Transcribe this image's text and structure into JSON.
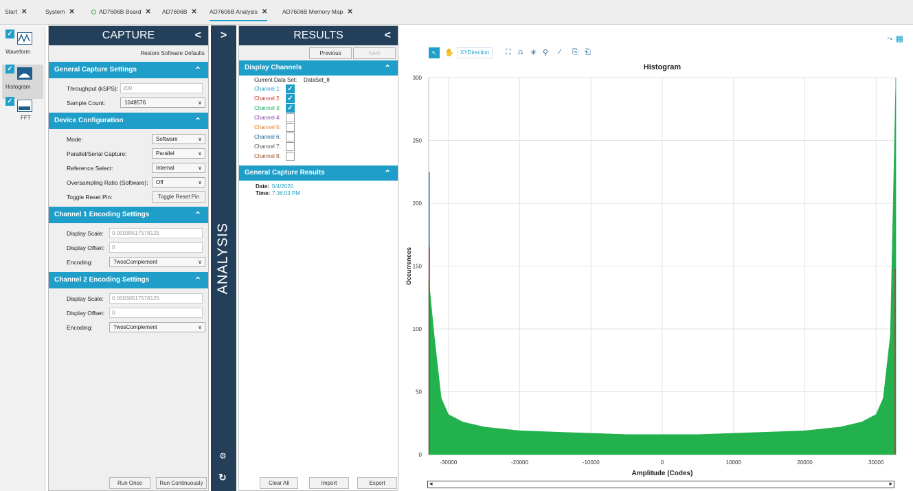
{
  "tabs": [
    {
      "label": "Start"
    },
    {
      "label": "System"
    },
    {
      "label": "AD7606B Board"
    },
    {
      "label": "AD7606B"
    },
    {
      "label": "AD7606B Analysis"
    },
    {
      "label": "AD7606B Memory Map"
    }
  ],
  "nav": [
    {
      "label": "Waveform"
    },
    {
      "label": "Histogram"
    },
    {
      "label": "FFT"
    }
  ],
  "capture": {
    "title": "CAPTURE",
    "restore": "Restore Software Defaults",
    "general": {
      "title": "General Capture Settings",
      "throughput_label": "Throughput (kSPS):",
      "throughput_value": "200",
      "sample_count_label": "Sample Count:",
      "sample_count_value": "1048576"
    },
    "device": {
      "title": "Device Configuration",
      "mode_label": "Mode:",
      "mode_value": "Software",
      "ps_label": "Parallel/Serial Capture:",
      "ps_value": "Parallel",
      "ref_label": "Reference Select:",
      "ref_value": "Internal",
      "os_label": "Oversampling Ratio (Software):",
      "os_value": "Off",
      "reset_label": "Toggle Reset Pin:",
      "reset_button": "Toggle Reset Pin"
    },
    "ch1": {
      "title": "Channel 1 Encoding Settings",
      "scale_label": "Display Scale:",
      "scale_value": "0.00030517578125",
      "offset_label": "Display Offset:",
      "offset_value": "0",
      "enc_label": "Encoding:",
      "enc_value": "TwosComplement"
    },
    "ch2": {
      "title": "Channel 2 Encoding Settings",
      "scale_label": "Display Scale:",
      "scale_value": "0.00030517578125",
      "offset_label": "Display Offset:",
      "offset_value": "0",
      "enc_label": "Encoding:",
      "enc_value": "TwosComplement"
    },
    "run_once": "Run Once",
    "run_cont": "Run Continuously"
  },
  "analysis": {
    "label": "ANALYSIS"
  },
  "results": {
    "title": "RESULTS",
    "previous": "Previous",
    "next": "Next",
    "display": {
      "title": "Display Channels",
      "dataset_label": "Current Data Set:",
      "dataset_value": "DataSet_8",
      "channels": [
        {
          "label": "Channel 1:",
          "checked": true,
          "color": "#1e9ec8"
        },
        {
          "label": "Channel 2:",
          "checked": true,
          "color": "#c0392b"
        },
        {
          "label": "Channel 3:",
          "checked": true,
          "color": "#27ae60"
        },
        {
          "label": "Channel 4:",
          "checked": false,
          "color": "#8e44ad"
        },
        {
          "label": "Channel 5:",
          "checked": false,
          "color": "#e67e22"
        },
        {
          "label": "Channel 6:",
          "checked": false,
          "color": "#1e5f8e"
        },
        {
          "label": "Channel 7:",
          "checked": false,
          "color": "#555555"
        },
        {
          "label": "Channel 8:",
          "checked": false,
          "color": "#a0522d"
        }
      ]
    },
    "gcr": {
      "title": "General Capture Results",
      "date_label": "Date:",
      "date_value": "5/4/2020",
      "time_label": "Time:",
      "time_value": "7:36:03 PM"
    },
    "clear": "Clear All",
    "import": "Import",
    "export": "Export"
  },
  "toolbar": {
    "xy": "XYDirection"
  },
  "chart_data": {
    "type": "bar",
    "title": "Histogram",
    "xlabel": "Amplitude (Codes)",
    "ylabel": "Occurrences",
    "xlim": [
      -32768,
      32767
    ],
    "ylim": [
      0,
      300
    ],
    "xticks": [
      -30000,
      -20000,
      -10000,
      0,
      10000,
      20000,
      30000
    ],
    "yticks": [
      0,
      50,
      100,
      150,
      200,
      250,
      300
    ],
    "series": [
      {
        "name": "Channel 3",
        "color": "#22b14c",
        "x": [
          -32768,
          -32000,
          -31000,
          -30000,
          -28000,
          -25000,
          -20000,
          -15000,
          -10000,
          -5000,
          0,
          5000,
          10000,
          15000,
          20000,
          25000,
          28000,
          30000,
          31000,
          32000,
          32767
        ],
        "values": [
          140,
          95,
          45,
          32,
          26,
          22,
          19,
          18,
          17,
          16,
          16,
          16,
          17,
          18,
          19,
          22,
          26,
          32,
          45,
          95,
          300
        ]
      },
      {
        "name": "Channel 1",
        "color": "#1e9ec8",
        "x": [
          -32768,
          32767
        ],
        "values": [
          225,
          150
        ]
      },
      {
        "name": "Channel 2",
        "color": "#c0392b",
        "x": [
          -32768,
          32767
        ],
        "values": [
          165,
          148
        ]
      }
    ],
    "grid": true
  }
}
